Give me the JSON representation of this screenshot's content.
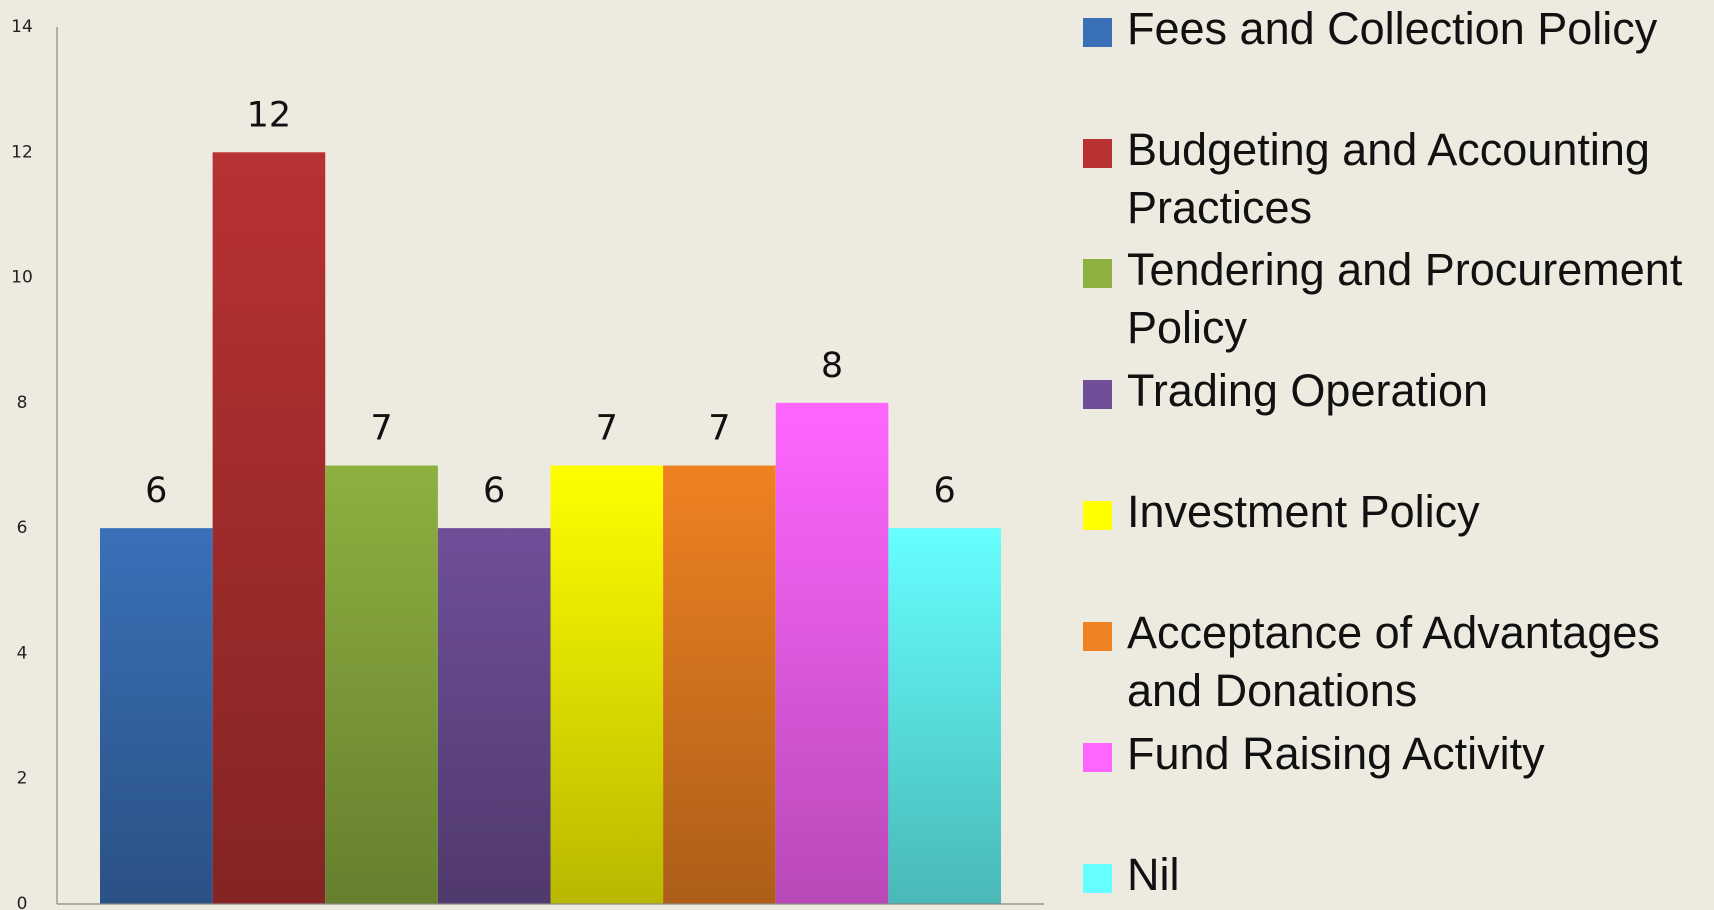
{
  "chart_data": {
    "type": "bar",
    "categories": [
      "Fees and Collection Policy",
      "Budgeting and Accounting Practices",
      "Tendering and Procurement Policy",
      "Trading Operation",
      "Investment Policy",
      "Acceptance of Advantages and Donations",
      "Fund Raising Activity",
      "Nil"
    ],
    "values": [
      6,
      12,
      7,
      6,
      7,
      7,
      8,
      6
    ],
    "colors": [
      "#3a70b8",
      "#b83232",
      "#8db040",
      "#6f4f98",
      "#ffff00",
      "#ef8222",
      "#ff66ff",
      "#66ffff"
    ],
    "ylim": [
      0,
      14
    ],
    "yticks": [
      0,
      2,
      4,
      6,
      8,
      10,
      12,
      14
    ],
    "grid": false,
    "legend": "right"
  }
}
